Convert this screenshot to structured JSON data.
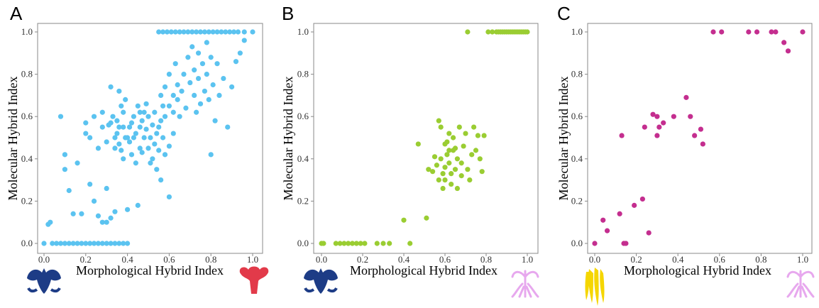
{
  "chart_data": [
    {
      "type": "scatter",
      "panel_label": "A",
      "xlabel": "Morphological Hybrid Index",
      "ylabel": "Molecular Hybrid Index",
      "xlim": [
        0,
        1
      ],
      "ylim": [
        0,
        1
      ],
      "xticks": [
        "0.0",
        "0.2",
        "0.4",
        "0.6",
        "0.8",
        "1.0"
      ],
      "yticks": [
        "0.0",
        "0.2",
        "0.4",
        "0.6",
        "0.8",
        "1.0"
      ],
      "grid": false,
      "color": "#5BC3F0",
      "icons": [
        "parent-flower-dark-blue-icon",
        "parent-flower-red-icon"
      ],
      "points": [
        [
          0.0,
          0.0
        ],
        [
          0.04,
          0.0
        ],
        [
          0.06,
          0.0
        ],
        [
          0.08,
          0.0
        ],
        [
          0.1,
          0.0
        ],
        [
          0.12,
          0.0
        ],
        [
          0.14,
          0.0
        ],
        [
          0.16,
          0.0
        ],
        [
          0.18,
          0.0
        ],
        [
          0.2,
          0.0
        ],
        [
          0.22,
          0.0
        ],
        [
          0.24,
          0.0
        ],
        [
          0.26,
          0.0
        ],
        [
          0.28,
          0.0
        ],
        [
          0.3,
          0.0
        ],
        [
          0.32,
          0.0
        ],
        [
          0.34,
          0.0
        ],
        [
          0.36,
          0.0
        ],
        [
          0.38,
          0.0
        ],
        [
          0.4,
          0.0
        ],
        [
          0.02,
          0.09
        ],
        [
          0.03,
          0.1
        ],
        [
          0.08,
          0.6
        ],
        [
          0.1,
          0.42
        ],
        [
          0.1,
          0.35
        ],
        [
          0.12,
          0.25
        ],
        [
          0.14,
          0.14
        ],
        [
          0.16,
          0.38
        ],
        [
          0.18,
          0.14
        ],
        [
          0.2,
          0.57
        ],
        [
          0.2,
          0.52
        ],
        [
          0.22,
          0.28
        ],
        [
          0.22,
          0.5
        ],
        [
          0.24,
          0.2
        ],
        [
          0.24,
          0.6
        ],
        [
          0.26,
          0.45
        ],
        [
          0.26,
          0.13
        ],
        [
          0.28,
          0.1
        ],
        [
          0.28,
          0.62
        ],
        [
          0.3,
          0.26
        ],
        [
          0.3,
          0.1
        ],
        [
          0.32,
          0.57
        ],
        [
          0.32,
          0.12
        ],
        [
          0.32,
          0.74
        ],
        [
          0.34,
          0.15
        ],
        [
          0.34,
          0.5
        ],
        [
          0.36,
          0.72
        ],
        [
          0.36,
          0.55
        ],
        [
          0.38,
          0.4
        ],
        [
          0.38,
          0.62
        ],
        [
          0.4,
          0.16
        ],
        [
          0.4,
          0.5
        ],
        [
          0.34,
          0.45
        ],
        [
          0.35,
          0.52
        ],
        [
          0.36,
          0.47
        ],
        [
          0.37,
          0.44
        ],
        [
          0.38,
          0.55
        ],
        [
          0.39,
          0.5
        ],
        [
          0.41,
          0.48
        ],
        [
          0.42,
          0.57
        ],
        [
          0.42,
          0.42
        ],
        [
          0.43,
          0.6
        ],
        [
          0.44,
          0.52
        ],
        [
          0.44,
          0.38
        ],
        [
          0.45,
          0.65
        ],
        [
          0.46,
          0.55
        ],
        [
          0.46,
          0.45
        ],
        [
          0.47,
          0.58
        ],
        [
          0.48,
          0.5
        ],
        [
          0.48,
          0.62
        ],
        [
          0.49,
          0.54
        ],
        [
          0.5,
          0.45
        ],
        [
          0.5,
          0.6
        ],
        [
          0.51,
          0.5
        ],
        [
          0.52,
          0.56
        ],
        [
          0.52,
          0.4
        ],
        [
          0.53,
          0.62
        ],
        [
          0.54,
          0.35
        ],
        [
          0.54,
          0.52
        ],
        [
          0.55,
          0.44
        ],
        [
          0.56,
          0.58
        ],
        [
          0.56,
          0.3
        ],
        [
          0.57,
          0.5
        ],
        [
          0.58,
          0.6
        ],
        [
          0.58,
          0.42
        ],
        [
          0.6,
          0.46
        ],
        [
          0.6,
          0.22
        ],
        [
          0.6,
          0.65
        ],
        [
          0.62,
          0.52
        ],
        [
          0.62,
          0.7
        ],
        [
          0.64,
          0.75
        ],
        [
          0.28,
          0.55
        ],
        [
          0.3,
          0.48
        ],
        [
          0.31,
          0.56
        ],
        [
          0.33,
          0.6
        ],
        [
          0.35,
          0.58
        ],
        [
          0.37,
          0.65
        ],
        [
          0.39,
          0.68
        ],
        [
          0.41,
          0.55
        ],
        [
          0.43,
          0.5
        ],
        [
          0.45,
          0.18
        ],
        [
          0.46,
          0.62
        ],
        [
          0.47,
          0.43
        ],
        [
          0.49,
          0.66
        ],
        [
          0.51,
          0.38
        ],
        [
          0.53,
          0.47
        ],
        [
          0.55,
          0.55
        ],
        [
          0.57,
          0.65
        ],
        [
          0.56,
          0.7
        ],
        [
          0.58,
          0.74
        ],
        [
          0.6,
          0.8
        ],
        [
          0.62,
          0.62
        ],
        [
          0.63,
          0.85
        ],
        [
          0.64,
          0.68
        ],
        [
          0.65,
          0.6
        ],
        [
          0.66,
          0.72
        ],
        [
          0.67,
          0.8
        ],
        [
          0.68,
          0.64
        ],
        [
          0.69,
          0.88
        ],
        [
          0.7,
          0.76
        ],
        [
          0.71,
          0.93
        ],
        [
          0.72,
          0.7
        ],
        [
          0.72,
          0.82
        ],
        [
          0.73,
          0.62
        ],
        [
          0.74,
          0.78
        ],
        [
          0.74,
          0.9
        ],
        [
          0.75,
          0.66
        ],
        [
          0.76,
          0.85
        ],
        [
          0.77,
          0.72
        ],
        [
          0.78,
          0.95
        ],
        [
          0.78,
          0.8
        ],
        [
          0.79,
          0.68
        ],
        [
          0.8,
          0.88
        ],
        [
          0.8,
          0.42
        ],
        [
          0.81,
          0.75
        ],
        [
          0.82,
          0.58
        ],
        [
          0.83,
          0.85
        ],
        [
          0.84,
          0.7
        ],
        [
          0.86,
          0.78
        ],
        [
          0.88,
          0.55
        ],
        [
          0.9,
          0.74
        ],
        [
          0.92,
          0.86
        ],
        [
          0.94,
          0.9
        ],
        [
          0.96,
          0.96
        ],
        [
          0.55,
          1.0
        ],
        [
          0.57,
          1.0
        ],
        [
          0.59,
          1.0
        ],
        [
          0.61,
          1.0
        ],
        [
          0.63,
          1.0
        ],
        [
          0.65,
          1.0
        ],
        [
          0.67,
          1.0
        ],
        [
          0.69,
          1.0
        ],
        [
          0.71,
          1.0
        ],
        [
          0.73,
          1.0
        ],
        [
          0.75,
          1.0
        ],
        [
          0.77,
          1.0
        ],
        [
          0.79,
          1.0
        ],
        [
          0.81,
          1.0
        ],
        [
          0.83,
          1.0
        ],
        [
          0.85,
          1.0
        ],
        [
          0.87,
          1.0
        ],
        [
          0.89,
          1.0
        ],
        [
          0.91,
          1.0
        ],
        [
          0.93,
          1.0
        ],
        [
          0.96,
          1.0
        ],
        [
          1.0,
          1.0
        ]
      ]
    },
    {
      "type": "scatter",
      "panel_label": "B",
      "xlabel": "Morphological Hybrid Index",
      "ylabel": "Molecular Hybrid Index",
      "xlim": [
        0,
        1
      ],
      "ylim": [
        0,
        1
      ],
      "xticks": [
        "0.0",
        "0.2",
        "0.4",
        "0.6",
        "0.8",
        "1.0"
      ],
      "yticks": [
        "0.0",
        "0.2",
        "0.4",
        "0.6",
        "0.8",
        "1.0"
      ],
      "grid": false,
      "color": "#9ACD32",
      "icons": [
        "parent-flower-dark-blue-icon",
        "parent-flower-pink-icon"
      ],
      "points": [
        [
          0.0,
          0.0
        ],
        [
          0.01,
          0.0
        ],
        [
          0.07,
          0.0
        ],
        [
          0.09,
          0.0
        ],
        [
          0.11,
          0.0
        ],
        [
          0.13,
          0.0
        ],
        [
          0.15,
          0.0
        ],
        [
          0.17,
          0.0
        ],
        [
          0.19,
          0.0
        ],
        [
          0.21,
          0.0
        ],
        [
          0.27,
          0.0
        ],
        [
          0.3,
          0.0
        ],
        [
          0.33,
          0.0
        ],
        [
          0.43,
          0.0
        ],
        [
          0.4,
          0.11
        ],
        [
          0.51,
          0.12
        ],
        [
          0.47,
          0.47
        ],
        [
          0.52,
          0.35
        ],
        [
          0.54,
          0.34
        ],
        [
          0.55,
          0.41
        ],
        [
          0.56,
          0.37
        ],
        [
          0.57,
          0.58
        ],
        [
          0.57,
          0.3
        ],
        [
          0.58,
          0.55
        ],
        [
          0.58,
          0.4
        ],
        [
          0.59,
          0.33
        ],
        [
          0.59,
          0.26
        ],
        [
          0.6,
          0.47
        ],
        [
          0.6,
          0.36
        ],
        [
          0.61,
          0.42
        ],
        [
          0.62,
          0.38
        ],
        [
          0.62,
          0.52
        ],
        [
          0.63,
          0.33
        ],
        [
          0.63,
          0.28
        ],
        [
          0.64,
          0.44
        ],
        [
          0.64,
          0.5
        ],
        [
          0.65,
          0.35
        ],
        [
          0.66,
          0.4
        ],
        [
          0.66,
          0.26
        ],
        [
          0.67,
          0.55
        ],
        [
          0.68,
          0.38
        ],
        [
          0.69,
          0.46
        ],
        [
          0.7,
          0.52
        ],
        [
          0.71,
          0.35
        ],
        [
          0.72,
          0.3
        ],
        [
          0.73,
          0.42
        ],
        [
          0.74,
          0.55
        ],
        [
          0.75,
          0.44
        ],
        [
          0.76,
          0.51
        ],
        [
          0.77,
          0.4
        ],
        [
          0.78,
          0.34
        ],
        [
          0.79,
          0.51
        ],
        [
          0.6,
          0.3
        ],
        [
          0.61,
          0.48
        ],
        [
          0.62,
          0.44
        ],
        [
          0.65,
          0.45
        ],
        [
          0.68,
          0.32
        ],
        [
          0.71,
          1.0
        ],
        [
          0.81,
          1.0
        ],
        [
          0.83,
          1.0
        ],
        [
          0.85,
          1.0
        ],
        [
          0.86,
          1.0
        ],
        [
          0.87,
          1.0
        ],
        [
          0.88,
          1.0
        ],
        [
          0.89,
          1.0
        ],
        [
          0.9,
          1.0
        ],
        [
          0.91,
          1.0
        ],
        [
          0.92,
          1.0
        ],
        [
          0.93,
          1.0
        ],
        [
          0.94,
          1.0
        ],
        [
          0.95,
          1.0
        ],
        [
          0.96,
          1.0
        ],
        [
          0.97,
          1.0
        ],
        [
          0.98,
          1.0
        ],
        [
          0.99,
          1.0
        ],
        [
          1.0,
          1.0
        ]
      ]
    },
    {
      "type": "scatter",
      "panel_label": "C",
      "xlabel": "Morphological Hybrid Index",
      "ylabel": "Molecular Hybrid Index",
      "xlim": [
        0,
        1
      ],
      "ylim": [
        0,
        1
      ],
      "xticks": [
        "0.0",
        "0.2",
        "0.4",
        "0.6",
        "0.8",
        "1.0"
      ],
      "yticks": [
        "0.0",
        "0.2",
        "0.4",
        "0.6",
        "0.8",
        "1.0"
      ],
      "grid": false,
      "color": "#C42E8F",
      "icons": [
        "parent-flower-yellow-icon",
        "parent-flower-pink-icon"
      ],
      "points": [
        [
          0.0,
          0.0
        ],
        [
          0.04,
          0.11
        ],
        [
          0.06,
          0.06
        ],
        [
          0.12,
          0.14
        ],
        [
          0.13,
          0.51
        ],
        [
          0.14,
          0.0
        ],
        [
          0.15,
          0.0
        ],
        [
          0.19,
          0.18
        ],
        [
          0.23,
          0.21
        ],
        [
          0.24,
          0.55
        ],
        [
          0.26,
          0.05
        ],
        [
          0.28,
          0.61
        ],
        [
          0.3,
          0.6
        ],
        [
          0.3,
          0.51
        ],
        [
          0.31,
          0.55
        ],
        [
          0.33,
          0.57
        ],
        [
          0.38,
          0.6
        ],
        [
          0.44,
          0.69
        ],
        [
          0.46,
          0.6
        ],
        [
          0.48,
          0.51
        ],
        [
          0.51,
          0.54
        ],
        [
          0.52,
          0.47
        ],
        [
          0.57,
          1.0
        ],
        [
          0.61,
          1.0
        ],
        [
          0.74,
          1.0
        ],
        [
          0.78,
          1.0
        ],
        [
          0.85,
          1.0
        ],
        [
          0.87,
          1.0
        ],
        [
          0.91,
          0.95
        ],
        [
          0.93,
          0.91
        ],
        [
          1.0,
          1.0
        ]
      ]
    }
  ]
}
